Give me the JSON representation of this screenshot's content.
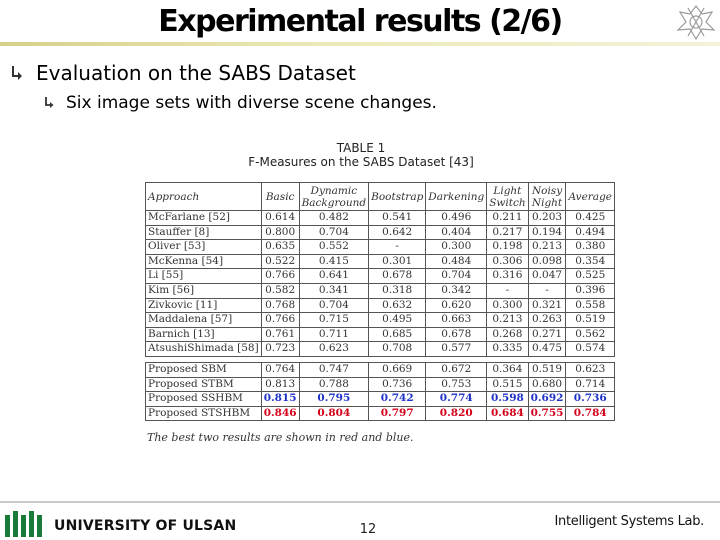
{
  "slide": {
    "title": "Experimental results (2/6)",
    "bullet1": "Evaluation on the SABS Dataset",
    "bullet2": "Six image sets with diverse scene changes."
  },
  "table": {
    "caption_line1": "TABLE 1",
    "caption_line2": "F-Measures on the SABS Dataset [43]",
    "headers": [
      "Approach",
      "Basic",
      "Dynamic Background",
      "Bootstrap",
      "Darkening",
      "Light Switch",
      "Noisy Night",
      "Average"
    ],
    "rows": [
      [
        "McFarlane [52]",
        "0.614",
        "0.482",
        "0.541",
        "0.496",
        "0.211",
        "0.203",
        "0.425"
      ],
      [
        "Stauffer [8]",
        "0.800",
        "0.704",
        "0.642",
        "0.404",
        "0.217",
        "0.194",
        "0.494"
      ],
      [
        "Oliver [53]",
        "0.635",
        "0.552",
        "-",
        "0.300",
        "0.198",
        "0.213",
        "0.380"
      ],
      [
        "McKenna [54]",
        "0.522",
        "0.415",
        "0.301",
        "0.484",
        "0.306",
        "0.098",
        "0.354"
      ],
      [
        "Li [55]",
        "0.766",
        "0.641",
        "0.678",
        "0.704",
        "0.316",
        "0.047",
        "0.525"
      ],
      [
        "Kim [56]",
        "0.582",
        "0.341",
        "0.318",
        "0.342",
        "-",
        "-",
        "0.396"
      ],
      [
        "Zivkovic [11]",
        "0.768",
        "0.704",
        "0.632",
        "0.620",
        "0.300",
        "0.321",
        "0.558"
      ],
      [
        "Maddalena [57]",
        "0.766",
        "0.715",
        "0.495",
        "0.663",
        "0.213",
        "0.263",
        "0.519"
      ],
      [
        "Barnich [13]",
        "0.761",
        "0.711",
        "0.685",
        "0.678",
        "0.268",
        "0.271",
        "0.562"
      ],
      [
        "AtsushiShimada [58]",
        "0.723",
        "0.623",
        "0.708",
        "0.577",
        "0.335",
        "0.475",
        "0.574"
      ]
    ],
    "proposed_rows": [
      [
        "Proposed SBM",
        "0.764",
        "0.747",
        "0.669",
        "0.672",
        "0.364",
        "0.519",
        "0.623"
      ],
      [
        "Proposed STBM",
        "0.813",
        "0.788",
        "0.736",
        "0.753",
        "0.515",
        "0.680",
        "0.714"
      ],
      [
        "Proposed SSHBM",
        "0.815",
        "0.795",
        "0.742",
        "0.774",
        "0.598",
        "0.692",
        "0.736"
      ],
      [
        "Proposed STSHBM",
        "0.846",
        "0.804",
        "0.797",
        "0.820",
        "0.684",
        "0.755",
        "0.784"
      ]
    ],
    "highlight": {
      "Proposed SSHBM": "blue",
      "Proposed STSHBM": "red"
    },
    "footnote": "The best two results are shown in red and blue."
  },
  "footer": {
    "university": "UNIVERSITY OF ULSAN",
    "page_number": "12",
    "lab": "Intelligent Systems Lab."
  },
  "colors": {
    "title_rule": "#d6d08a",
    "best_red": "#d4001a",
    "second_blue": "#1f33c8",
    "logo_green": "#1a7a3a"
  },
  "icons": {
    "bullet": "down-right-arrow-icon",
    "crest": "university-crest-icon",
    "logo": "ulsan-logo-icon"
  }
}
